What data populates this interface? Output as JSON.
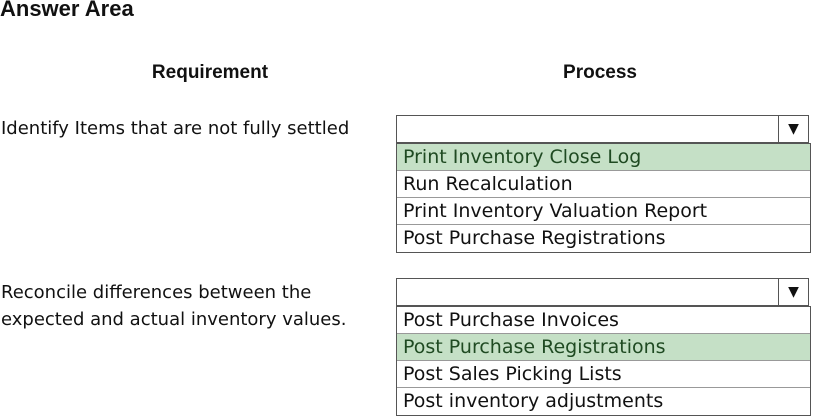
{
  "title": "Answer Area",
  "headers": {
    "requirement": "Requirement",
    "process": "Process"
  },
  "rows": [
    {
      "requirement": [
        "Identify Items that are not fully settled"
      ],
      "options": [
        "Print Inventory Close Log",
        "Run Recalculation",
        "Print Inventory Valuation Report",
        "Post Purchase Registrations"
      ],
      "selected_index": 0
    },
    {
      "requirement": [
        "Reconcile differences between the",
        "expected and actual inventory values."
      ],
      "options": [
        "Post Purchase Invoices",
        "Post Purchase Registrations",
        "Post Sales Picking Lists",
        "Post inventory adjustments"
      ],
      "selected_index": 1
    }
  ],
  "dropdown_arrow": "▼",
  "colors": {
    "selected_bg": "#c5e0c6"
  }
}
